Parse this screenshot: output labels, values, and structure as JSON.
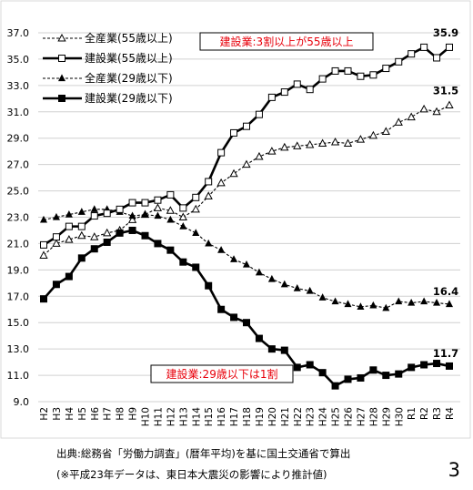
{
  "chart_data": {
    "type": "line",
    "title": "",
    "xlabel": "",
    "ylabel": "",
    "ylim": [
      9.0,
      37.0
    ],
    "yticks": [
      "9.0",
      "11.0",
      "13.0",
      "15.0",
      "17.0",
      "19.0",
      "21.0",
      "23.0",
      "25.0",
      "27.0",
      "29.0",
      "31.0",
      "33.0",
      "35.0",
      "37.0"
    ],
    "categories": [
      "H2",
      "H3",
      "H4",
      "H5",
      "H6",
      "H7",
      "H8",
      "H9",
      "H10",
      "H11",
      "H12",
      "H13",
      "H14",
      "H15",
      "H16",
      "H17",
      "H18",
      "H19",
      "H20",
      "H21",
      "H22",
      "H23",
      "H24",
      "H25",
      "H26",
      "H27",
      "H28",
      "H29",
      "H30",
      "R1",
      "R2",
      "R3",
      "R4"
    ],
    "grid": "horizontal",
    "legend_position": "top-left",
    "series": [
      {
        "name": "全産業(55歳以上)",
        "style": "dashed",
        "marker": "open-triangle",
        "color": "#000000",
        "values": [
          20.1,
          21.0,
          21.3,
          21.6,
          21.5,
          21.8,
          22.0,
          22.8,
          23.2,
          23.7,
          23.5,
          23.0,
          23.6,
          24.6,
          25.6,
          26.3,
          27.0,
          27.6,
          28.0,
          28.3,
          28.4,
          28.5,
          28.6,
          28.7,
          28.6,
          28.9,
          29.2,
          29.5,
          30.2,
          30.6,
          31.2,
          31.0,
          31.5
        ],
        "end_label": "31.5"
      },
      {
        "name": "建設業(55歳以上)",
        "style": "solid",
        "marker": "open-square",
        "color": "#000000",
        "values": [
          20.9,
          21.5,
          22.3,
          22.3,
          23.1,
          23.3,
          23.6,
          24.1,
          24.1,
          24.3,
          24.7,
          23.7,
          24.5,
          25.7,
          27.9,
          29.4,
          29.9,
          30.8,
          32.1,
          32.5,
          33.1,
          32.7,
          33.5,
          34.1,
          34.1,
          33.7,
          33.8,
          34.3,
          34.8,
          35.4,
          35.9,
          35.1,
          35.9
        ],
        "end_label": "35.9"
      },
      {
        "name": "全産業(29歳以下)",
        "style": "dashed",
        "marker": "filled-triangle",
        "color": "#000000",
        "values": [
          22.8,
          23.0,
          23.2,
          23.4,
          23.6,
          23.6,
          23.4,
          23.1,
          23.2,
          23.1,
          22.8,
          22.3,
          21.8,
          21.0,
          20.5,
          19.8,
          19.4,
          18.8,
          18.3,
          17.9,
          17.6,
          17.4,
          16.9,
          16.6,
          16.4,
          16.2,
          16.3,
          16.1,
          16.6,
          16.5,
          16.6,
          16.5,
          16.4
        ],
        "end_label": "16.4"
      },
      {
        "name": "建設業(29歳以下)",
        "style": "solid",
        "marker": "filled-square",
        "color": "#000000",
        "values": [
          16.8,
          17.9,
          18.5,
          19.9,
          20.6,
          21.1,
          21.8,
          22.0,
          21.6,
          21.0,
          20.5,
          19.6,
          19.2,
          17.8,
          16.0,
          15.4,
          15.0,
          13.8,
          13.0,
          12.9,
          11.6,
          11.8,
          11.2,
          10.2,
          10.7,
          10.8,
          11.4,
          11.0,
          11.1,
          11.6,
          11.8,
          11.9,
          11.7
        ],
        "end_label": "11.7"
      }
    ],
    "annotations": [
      {
        "text": "建設業:3割以上が55歳以上",
        "color": "#e8000b"
      },
      {
        "text": "建設業:29歳以下は1割",
        "color": "#e8000b"
      }
    ]
  },
  "footer": {
    "source_line_1": "出典:総務省「労働力調査」(暦年平均)を基に国土交通省で算出",
    "source_line_2": "(※平成23年データは、東日本大震災の影響により推計値)",
    "page_number": "3"
  }
}
